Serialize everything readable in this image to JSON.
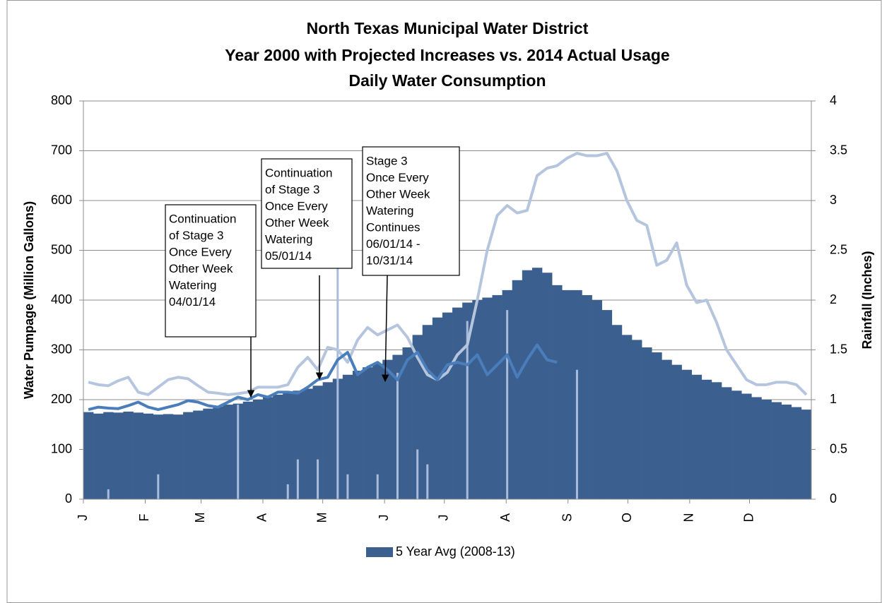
{
  "chart_data": {
    "type": "bar",
    "title": [
      "North Texas Municipal Water District",
      "Year 2000 with Projected Increases vs. 2014 Actual Usage",
      "Daily Water Consumption"
    ],
    "y_label": "Water Pumpage (Million Gallons)",
    "y2_label": "Rainfall (Inches)",
    "x": [
      1,
      6,
      11,
      16,
      21,
      26,
      31,
      36,
      41,
      46,
      51,
      56,
      61,
      66,
      71,
      76,
      81,
      86,
      91,
      96,
      101,
      106,
      111,
      116,
      121,
      126,
      131,
      136,
      141,
      146,
      151,
      156,
      161,
      166,
      171,
      176,
      181,
      186,
      191,
      196,
      201,
      206,
      211,
      216,
      221,
      226,
      231,
      236,
      241,
      246,
      251,
      256,
      261,
      266,
      271,
      276,
      281,
      286,
      291,
      296,
      301,
      306,
      311,
      316,
      321,
      326,
      331,
      336,
      341,
      346,
      351,
      356,
      361
    ],
    "xlim": [
      1,
      366
    ],
    "xticks": [
      {
        "value": 1,
        "label": "J"
      },
      {
        "value": 32,
        "label": "F"
      },
      {
        "value": 60,
        "label": "M"
      },
      {
        "value": 91,
        "label": "A"
      },
      {
        "value": 121,
        "label": "M"
      },
      {
        "value": 152,
        "label": "J"
      },
      {
        "value": 182,
        "label": "J"
      },
      {
        "value": 213,
        "label": "A"
      },
      {
        "value": 244,
        "label": "S"
      },
      {
        "value": 274,
        "label": "O"
      },
      {
        "value": 305,
        "label": "N"
      },
      {
        "value": 335,
        "label": "D"
      }
    ],
    "ylim": [
      0,
      800
    ],
    "yticks": [
      0,
      100,
      200,
      300,
      400,
      500,
      600,
      700,
      800
    ],
    "y2lim": [
      0,
      4
    ],
    "y2ticks": [
      0,
      0.5,
      1,
      1.5,
      2,
      2.5,
      3,
      3.5,
      4
    ],
    "grid": true,
    "legend": "bottom",
    "series": [
      {
        "name": "5 Year Avg (2008-13)",
        "type": "bar",
        "color": "#3b5f8e",
        "values": [
          175,
          172,
          175,
          174,
          176,
          174,
          172,
          170,
          171,
          170,
          175,
          178,
          182,
          186,
          190,
          192,
          196,
          200,
          205,
          210,
          215,
          218,
          222,
          228,
          235,
          242,
          250,
          258,
          265,
          272,
          280,
          290,
          305,
          330,
          350,
          365,
          375,
          385,
          395,
          400,
          405,
          410,
          420,
          440,
          460,
          465,
          455,
          430,
          420,
          420,
          410,
          400,
          380,
          350,
          330,
          320,
          305,
          295,
          280,
          270,
          260,
          250,
          240,
          235,
          225,
          218,
          212,
          205,
          200,
          195,
          190,
          185,
          180
        ]
      },
      {
        "type": "bar",
        "axis": "y2",
        "color": "#a9bcdb",
        "values": [
          0,
          0,
          0.1,
          0,
          0,
          0,
          0,
          0.25,
          0,
          0,
          0,
          0,
          0,
          0,
          0,
          0.95,
          0,
          0,
          0,
          0,
          0.15,
          0.4,
          0,
          0.4,
          0,
          2.5,
          0.25,
          0,
          0,
          0.25,
          0,
          1.27,
          0,
          0.5,
          0.35,
          0,
          0,
          0,
          1.79,
          0,
          0,
          0,
          1.9,
          0,
          0,
          0,
          0,
          0,
          0,
          1.3,
          0,
          0,
          0,
          0,
          0,
          0,
          0,
          0,
          0,
          0,
          0,
          0,
          0,
          0,
          0,
          0,
          0,
          0,
          0,
          0,
          0,
          0,
          0
        ]
      },
      {
        "type": "line",
        "color": "#b6c5de",
        "values": [
          235,
          230,
          228,
          238,
          245,
          215,
          210,
          225,
          240,
          245,
          242,
          228,
          215,
          213,
          210,
          212,
          215,
          225,
          225,
          225,
          230,
          265,
          285,
          260,
          305,
          300,
          275,
          320,
          345,
          330,
          340,
          350,
          325,
          285,
          250,
          240,
          255,
          290,
          310,
          400,
          500,
          570,
          590,
          575,
          580,
          650,
          665,
          670,
          685,
          695,
          690,
          690,
          695,
          660,
          600,
          560,
          550,
          470,
          480,
          515,
          430,
          395,
          400,
          355,
          300,
          270,
          240,
          230,
          230,
          235,
          235,
          230,
          210
        ]
      },
      {
        "type": "line",
        "color": "#4a7dbb",
        "values": [
          180,
          185,
          183,
          182,
          188,
          195,
          185,
          180,
          185,
          190,
          198,
          195,
          188,
          185,
          195,
          205,
          200,
          210,
          205,
          215,
          215,
          213,
          225,
          240,
          245,
          280,
          295,
          250,
          265,
          275,
          260,
          240,
          280,
          295,
          260,
          240,
          270,
          275,
          270,
          290,
          250,
          270,
          290,
          245,
          280,
          310,
          280,
          275,
          null,
          null,
          null,
          null,
          null,
          null,
          null,
          null,
          null,
          null,
          null,
          null,
          null,
          null,
          null,
          null,
          null,
          null,
          null,
          null,
          null,
          null,
          null,
          null,
          null
        ]
      }
    ],
    "annotations": [
      {
        "lines": [
          "Continuation",
          "of Stage 3",
          "Once Every",
          "Other Week",
          "Watering",
          "04/01/14"
        ]
      },
      {
        "lines": [
          "Continuation",
          "of Stage 3",
          "Once Every",
          "Other Week",
          "Watering",
          "05/01/14"
        ]
      },
      {
        "lines": [
          "Stage 3",
          "Once Every",
          "Other Week",
          "Watering",
          "Continues",
          "06/01/14 -",
          "10/31/14"
        ]
      }
    ]
  }
}
